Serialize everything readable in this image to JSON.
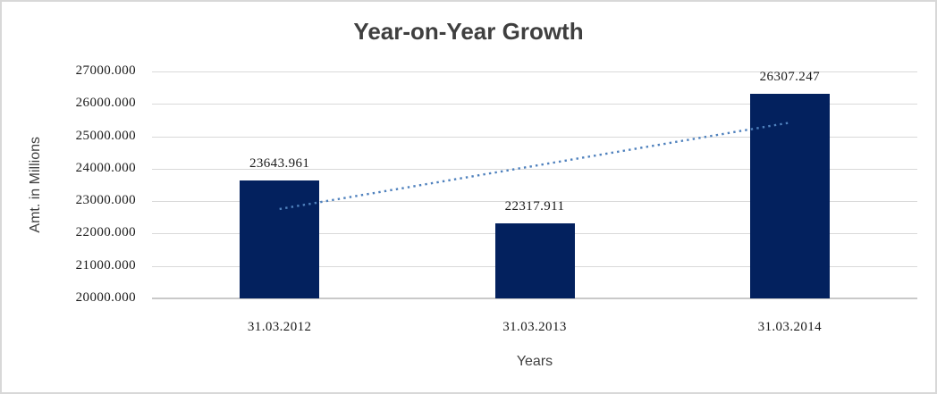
{
  "chart_data": {
    "type": "bar",
    "title": "Year-on-Year Growth",
    "categories": [
      "31.03.2012",
      "31.03.2013",
      "31.03.2014"
    ],
    "series": [
      {
        "name": "Amt. in Millions",
        "values": [
          23643.961,
          22317.911,
          26307.247
        ]
      }
    ],
    "data_labels": [
      "23643.961",
      "22317.911",
      "26307.247"
    ],
    "xlabel": "Years",
    "ylabel": "Amt. in Millions",
    "ylim": [
      20000,
      27000
    ],
    "yticks": [
      {
        "v": 27000,
        "label": "27000.000"
      },
      {
        "v": 26000,
        "label": "26000.000"
      },
      {
        "v": 25000,
        "label": "25000.000"
      },
      {
        "v": 24000,
        "label": "24000.000"
      },
      {
        "v": 23000,
        "label": "23000.000"
      },
      {
        "v": 22000,
        "label": "22000.000"
      },
      {
        "v": 21000,
        "label": "21000.000"
      },
      {
        "v": 20000,
        "label": "20000.000"
      }
    ],
    "grid": true,
    "legend": "none",
    "trendline": {
      "type": "linear",
      "style": "dotted",
      "start_value": 22758.06,
      "end_value": 25421.35
    },
    "colors": {
      "bar": "#03215e",
      "trendline": "#4f81bd",
      "gridline": "#d9d9d9",
      "axis_line": "#c9c9c9",
      "title_text": "#3f3f3f",
      "tick_text": "#1a1a1a",
      "axis_title_text": "#404040"
    }
  }
}
